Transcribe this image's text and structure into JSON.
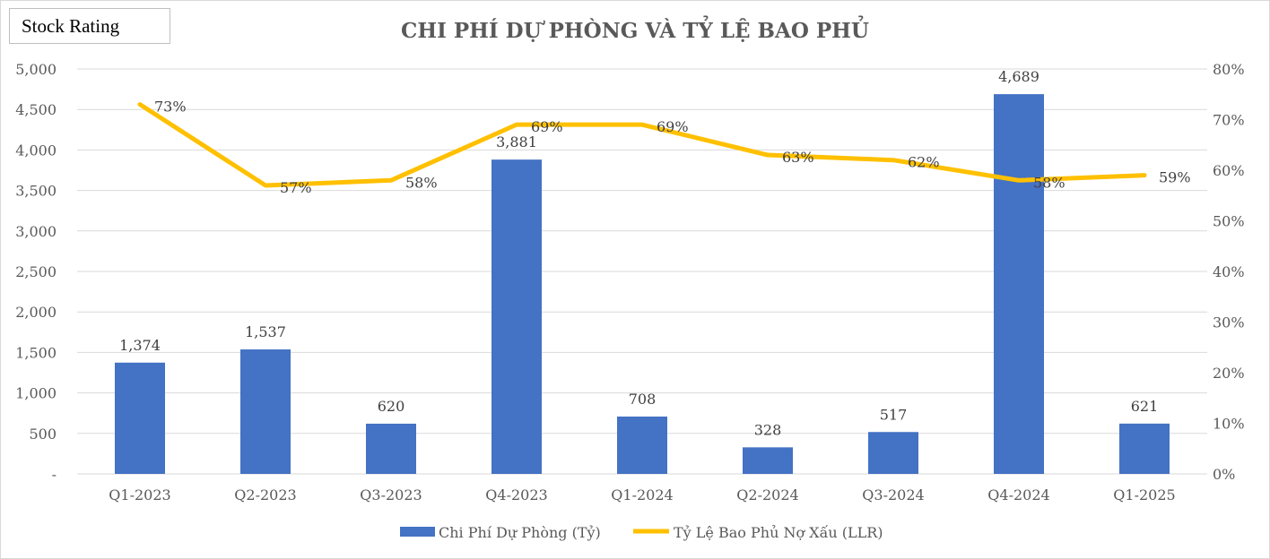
{
  "badge": {
    "label": "Stock Rating"
  },
  "chart_data": {
    "type": "bar",
    "title": "CHI PHÍ DỰ PHÒNG VÀ TỶ LỆ BAO PHỦ",
    "categories": [
      "Q1-2023",
      "Q2-2023",
      "Q3-2023",
      "Q4-2023",
      "Q1-2024",
      "Q2-2024",
      "Q3-2024",
      "Q4-2024",
      "Q1-2025"
    ],
    "series": [
      {
        "name": "Chi Phí Dự Phòng (Tỷ)",
        "type": "bar",
        "axis": "left",
        "color": "#4472C4",
        "values": [
          1374,
          1537,
          620,
          3881,
          708,
          328,
          517,
          4689,
          621
        ],
        "labels": [
          "1,374",
          "1,537",
          "620",
          "3,881",
          "708",
          "328",
          "517",
          "4,689",
          "621"
        ]
      },
      {
        "name": "Tỷ Lệ Bao Phủ Nợ Xấu (LLR)",
        "type": "line",
        "axis": "right",
        "color": "#FFC000",
        "values": [
          0.73,
          0.57,
          0.58,
          0.69,
          0.69,
          0.63,
          0.62,
          0.58,
          0.59
        ],
        "labels": [
          "73%",
          "57%",
          "58%",
          "69%",
          "69%",
          "63%",
          "62%",
          "58%",
          "59%"
        ]
      }
    ],
    "y_left": {
      "min": 0,
      "max": 5000,
      "ticks": [
        0,
        500,
        1000,
        1500,
        2000,
        2500,
        3000,
        3500,
        4000,
        4500,
        5000
      ],
      "tick_labels": [
        "-",
        "500",
        "1,000",
        "1,500",
        "2,000",
        "2,500",
        "3,000",
        "3,500",
        "4,000",
        "4,500",
        "5,000"
      ]
    },
    "y_right": {
      "min": 0,
      "max": 0.8,
      "ticks": [
        0,
        0.1,
        0.2,
        0.3,
        0.4,
        0.5,
        0.6,
        0.7,
        0.8
      ],
      "tick_labels": [
        "0%",
        "10%",
        "20%",
        "30%",
        "40%",
        "50%",
        "60%",
        "70%",
        "80%"
      ]
    },
    "grid": true,
    "legend": "bottom",
    "gridColor": "#d9d9d9",
    "textColor": "#595959"
  }
}
